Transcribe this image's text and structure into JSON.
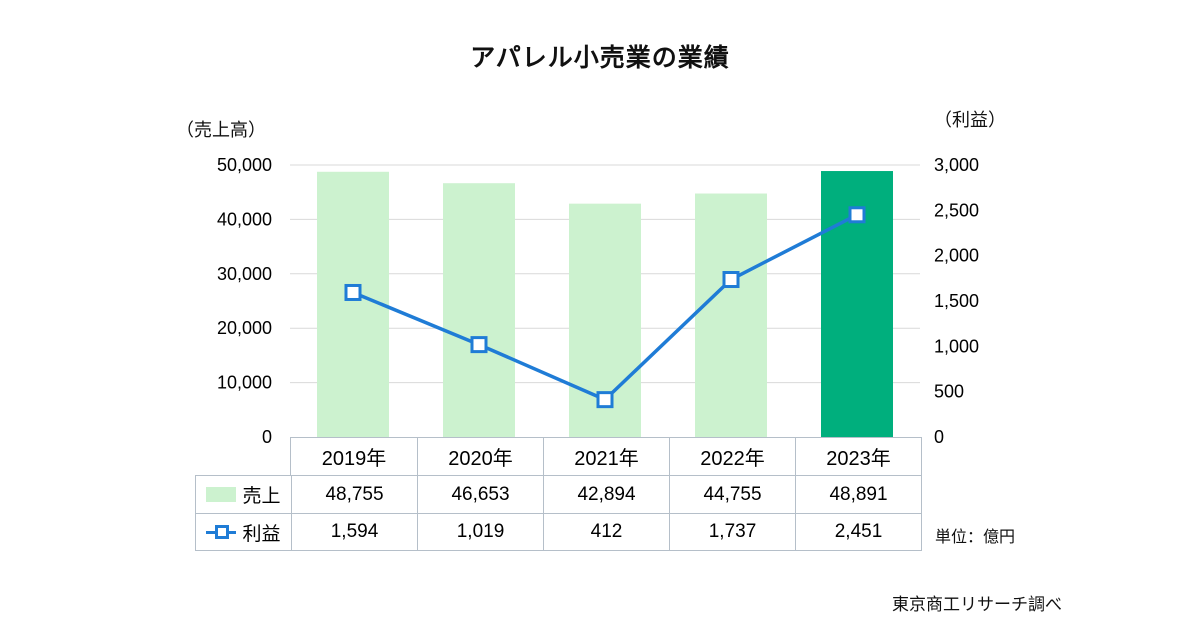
{
  "title": "アパレル小売業の業績",
  "left_axis_label": "（売上高）",
  "right_axis_label": "（利益）",
  "footer": {
    "unit_note": "単位：億円",
    "source_note": "東京商工リサーチ調べ"
  },
  "chart_data": {
    "type": "bar+line",
    "categories": [
      "2019年",
      "2020年",
      "2021年",
      "2022年",
      "2023年"
    ],
    "series": [
      {
        "name": "売上",
        "type": "bar",
        "axis": "left",
        "values": [
          48755,
          46653,
          42894,
          44755,
          48891
        ],
        "colors": [
          "#ccf2cf",
          "#ccf2cf",
          "#ccf2cf",
          "#ccf2cf",
          "#00af7d"
        ]
      },
      {
        "name": "利益",
        "type": "line",
        "axis": "right",
        "values": [
          1594,
          1019,
          412,
          1737,
          2451
        ],
        "color": "#1f7cd6",
        "marker": "square-white-fill"
      }
    ],
    "left_axis": {
      "min": 0,
      "max": 50000,
      "step": 10000,
      "ticks": [
        "0",
        "10,000",
        "20,000",
        "30,000",
        "40,000",
        "50,000"
      ]
    },
    "right_axis": {
      "min": 0,
      "max": 3000,
      "step": 500,
      "ticks": [
        "0",
        "500",
        "1,000",
        "1,500",
        "2,000",
        "2,500",
        "3,000"
      ]
    },
    "grid": true,
    "legend_position": "table-left"
  },
  "table": {
    "rows": [
      {
        "legend": "売上",
        "values": [
          "48,755",
          "46,653",
          "42,894",
          "44,755",
          "48,891"
        ]
      },
      {
        "legend": "利益",
        "values": [
          "1,594",
          "1,019",
          "412",
          "1,737",
          "2,451"
        ]
      }
    ]
  }
}
